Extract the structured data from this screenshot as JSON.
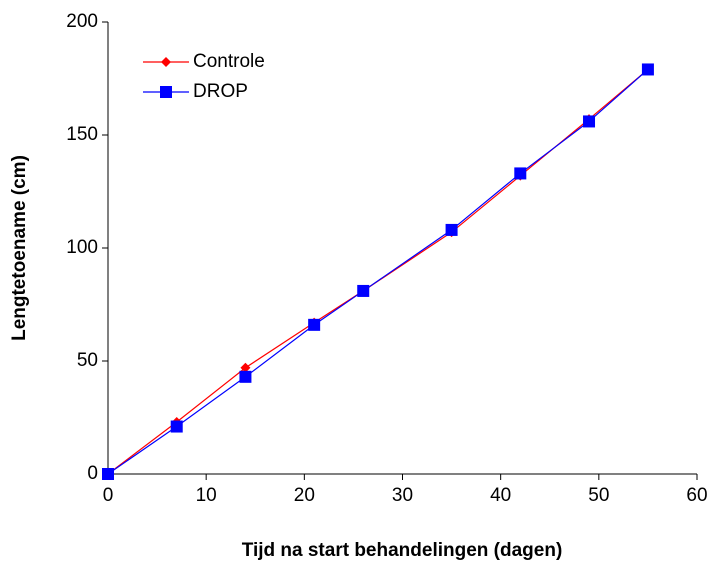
{
  "chart_data": {
    "type": "line",
    "x_label": "Tijd na start behandelingen (dagen)",
    "y_label": "Lengtetoename (cm)",
    "x": [
      0,
      7,
      14,
      21,
      26,
      35,
      42,
      49,
      55
    ],
    "series": [
      {
        "name": "Controle",
        "color": "#ff0000",
        "marker_color": "#ff0000",
        "marker": "diamond",
        "values": [
          0,
          23,
          47,
          67,
          81,
          107,
          132,
          157,
          179
        ]
      },
      {
        "name": "DROP",
        "color": "#0000ff",
        "marker_color": "#0000ff",
        "marker": "square",
        "values": [
          0,
          21,
          43,
          66,
          81,
          108,
          133,
          156,
          179
        ]
      }
    ],
    "xlim": [
      0,
      60
    ],
    "xticks": [
      0,
      10,
      20,
      30,
      40,
      50,
      60
    ],
    "ylim": [
      0,
      200
    ],
    "yticks": [
      0,
      50,
      100,
      150,
      200
    ],
    "grid": false,
    "legend": "top-left"
  }
}
